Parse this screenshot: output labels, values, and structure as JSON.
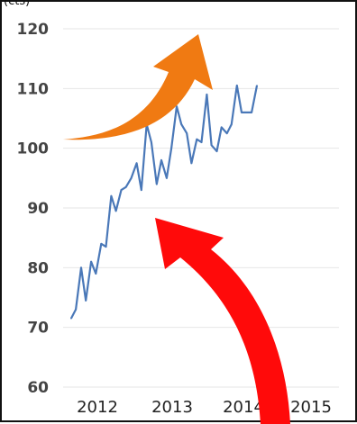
{
  "top_left_partial_text": "(cts)",
  "colors": {
    "line": "#4a78b8",
    "grid": "#e6e6e6",
    "orange_arrow": "#f07a12",
    "red_arrow": "#ff0a0a"
  },
  "chart_data": {
    "type": "line",
    "title": "",
    "xlabel": "",
    "ylabel": "",
    "x_tick_labels": [
      "2012",
      "2013",
      "2014",
      "2015"
    ],
    "y_ticks": [
      60,
      70,
      80,
      90,
      100,
      110,
      120
    ],
    "ylim": [
      60,
      120
    ],
    "xlim": [
      2011.8,
      2015.9
    ],
    "grid": true,
    "series": [
      {
        "values": [
          {
            "x": 2011.92,
            "y": 71.5
          },
          {
            "x": 2011.99,
            "y": 73
          },
          {
            "x": 2012.07,
            "y": 80
          },
          {
            "x": 2012.14,
            "y": 74.5
          },
          {
            "x": 2012.22,
            "y": 81
          },
          {
            "x": 2012.29,
            "y": 79
          },
          {
            "x": 2012.37,
            "y": 84
          },
          {
            "x": 2012.44,
            "y": 83.5
          },
          {
            "x": 2012.52,
            "y": 92
          },
          {
            "x": 2012.59,
            "y": 89.5
          },
          {
            "x": 2012.67,
            "y": 93
          },
          {
            "x": 2012.74,
            "y": 93.5
          },
          {
            "x": 2012.82,
            "y": 95
          },
          {
            "x": 2012.9,
            "y": 97.5
          },
          {
            "x": 2012.97,
            "y": 93
          },
          {
            "x": 2013.05,
            "y": 104
          },
          {
            "x": 2013.12,
            "y": 101
          },
          {
            "x": 2013.2,
            "y": 94
          },
          {
            "x": 2013.27,
            "y": 98
          },
          {
            "x": 2013.35,
            "y": 95
          },
          {
            "x": 2013.42,
            "y": 100
          },
          {
            "x": 2013.5,
            "y": 107
          },
          {
            "x": 2013.57,
            "y": 104
          },
          {
            "x": 2013.65,
            "y": 102.5
          },
          {
            "x": 2013.72,
            "y": 97.5
          },
          {
            "x": 2013.8,
            "y": 101.5
          },
          {
            "x": 2013.87,
            "y": 101
          },
          {
            "x": 2013.95,
            "y": 109
          },
          {
            "x": 2014.02,
            "y": 100.5
          },
          {
            "x": 2014.1,
            "y": 99.5
          },
          {
            "x": 2014.17,
            "y": 103.5
          },
          {
            "x": 2014.25,
            "y": 102.5
          },
          {
            "x": 2014.32,
            "y": 104
          },
          {
            "x": 2014.4,
            "y": 110.5
          },
          {
            "x": 2014.47,
            "y": 106
          },
          {
            "x": 2014.55,
            "y": 106
          },
          {
            "x": 2014.62,
            "y": 106
          },
          {
            "x": 2014.7,
            "y": 110.5
          }
        ]
      }
    ],
    "annotations": [
      {
        "kind": "arrow",
        "color": "orange",
        "direction": "up-right"
      },
      {
        "kind": "arrow",
        "color": "red",
        "direction": "up-left"
      }
    ]
  }
}
